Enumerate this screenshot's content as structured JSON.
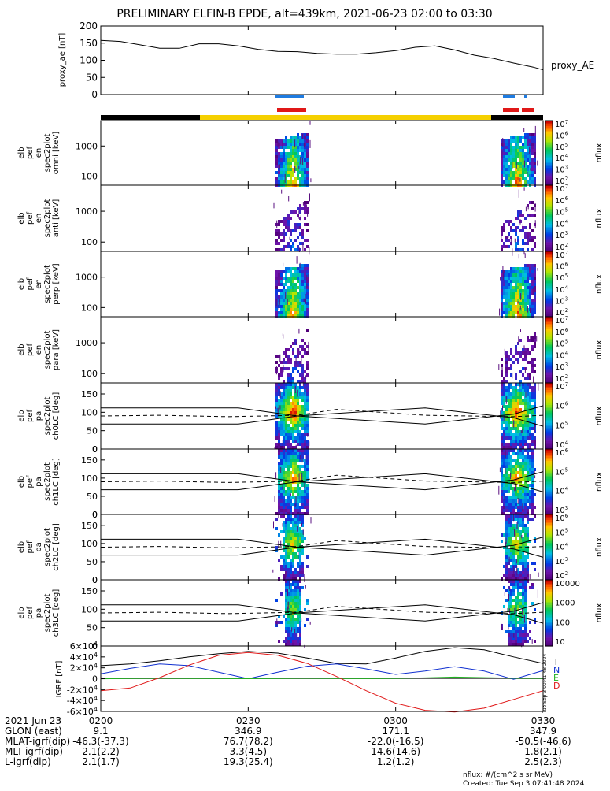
{
  "title": "PRELIMINARY ELFIN-B EPDE, alt=439km, 2021-06-23 02:00 to 03:30",
  "footer": {
    "units": "nflux: #/(cm^2 s sr MeV)",
    "created": "Created: Tue Sep  3 07:41:48 2024",
    "side_stamp": "Tue Sep  3 00:41:48 2024"
  },
  "colors": {
    "ae_line": "#000000",
    "sci_zone": "#1e7be0",
    "sci_zone_red": "#e01818",
    "orbit_black": "#000000",
    "orbit_yellow": "#f5d000",
    "igrf_T": "#000000",
    "igrf_N": "#1030d0",
    "igrf_E": "#20b020",
    "igrf_D": "#e01818"
  },
  "time_axis": {
    "tick_labels": [
      "0200",
      "0230",
      "0300",
      "0330"
    ],
    "start_minutes": 0,
    "end_minutes": 90
  },
  "ephemeris": {
    "date_label": "2021 Jun 23",
    "rows": [
      {
        "label": "GLON (east)",
        "values": [
          "9.1",
          "346.9",
          "171.1",
          "347.9"
        ]
      },
      {
        "label": "MLAT-igrf(dip)",
        "values": [
          "-46.3(-37.3)",
          "76.7(78.2)",
          "-22.0(-16.5)",
          "-50.5(-46.6)"
        ]
      },
      {
        "label": "MLT-igrf(dip)",
        "values": [
          "2.1(2.2)",
          "3.3(4.5)",
          "14.6(14.6)",
          "1.8(2.1)"
        ]
      },
      {
        "label": "L-igrf(dip)",
        "values": [
          "2.1(1.7)",
          "19.3(25.4)",
          "1.2(1.2)",
          "2.5(2.3)"
        ]
      }
    ]
  },
  "chart_data": [
    {
      "type": "line",
      "ylabel": "proxy_ae [nT]",
      "series_label": "proxy_AE",
      "ylim": [
        0,
        200
      ],
      "yticks": [
        "0",
        "50",
        "100",
        "150",
        "200"
      ],
      "x_minutes": [
        0,
        4,
        8,
        12,
        16,
        20,
        24,
        28,
        32,
        36,
        40,
        44,
        48,
        52,
        56,
        60,
        64,
        68,
        72,
        76,
        80,
        84,
        88,
        90
      ],
      "values": [
        158,
        155,
        145,
        135,
        135,
        148,
        148,
        142,
        132,
        126,
        125,
        120,
        118,
        118,
        122,
        128,
        138,
        142,
        130,
        115,
        105,
        92,
        80,
        72
      ]
    },
    {
      "type": "heatmap",
      "ylabel": "elb pef en spec2plot omni [keV]",
      "colorbar_label": "nflux",
      "yticks": [
        "100",
        "1000"
      ],
      "colorbar_ticks": [
        "10^2",
        "10^3",
        "10^4",
        "10^5",
        "10^6",
        "10^7"
      ]
    },
    {
      "type": "heatmap",
      "ylabel": "elb pef en spec2plot anti [keV]",
      "colorbar_label": "nflux",
      "yticks": [
        "100",
        "1000"
      ],
      "colorbar_ticks": [
        "10^2",
        "10^3",
        "10^4",
        "10^5",
        "10^6",
        "10^7"
      ]
    },
    {
      "type": "heatmap",
      "ylabel": "elb pef en spec2plot perp [keV]",
      "colorbar_label": "nflux",
      "yticks": [
        "100",
        "1000"
      ],
      "colorbar_ticks": [
        "10^2",
        "10^3",
        "10^4",
        "10^5",
        "10^6",
        "10^7"
      ]
    },
    {
      "type": "heatmap",
      "ylabel": "elb pef en spec2plot para [keV]",
      "colorbar_label": "nflux",
      "yticks": [
        "100",
        "1000"
      ],
      "colorbar_ticks": [
        "10^2",
        "10^3",
        "10^4",
        "10^5",
        "10^6",
        "10^7"
      ]
    },
    {
      "type": "heatmap",
      "ylabel": "elb pef pa spec2plot ch0LC [deg]",
      "colorbar_label": "nflux",
      "yticks": [
        "0",
        "50",
        "100",
        "150"
      ],
      "colorbar_ticks": [
        "10^4",
        "10^5",
        "10^6",
        "10^7"
      ]
    },
    {
      "type": "heatmap",
      "ylabel": "elb pef pa spec2plot ch1LC [deg]",
      "colorbar_label": "nflux",
      "yticks": [
        "0",
        "50",
        "100",
        "150"
      ],
      "colorbar_ticks": [
        "10^3",
        "10^4",
        "10^5",
        "10^6"
      ]
    },
    {
      "type": "heatmap",
      "ylabel": "elb pef pa spec2plot ch2LC [deg]",
      "colorbar_label": "nflux",
      "yticks": [
        "0",
        "50",
        "100",
        "150"
      ],
      "colorbar_ticks": [
        "10^2",
        "10^3",
        "10^4",
        "10^5",
        "10^6"
      ]
    },
    {
      "type": "heatmap",
      "ylabel": "elb pef pa spec2plot ch3LC [deg]",
      "colorbar_label": "nflux",
      "yticks": [
        "0",
        "50",
        "100",
        "150"
      ],
      "colorbar_ticks": [
        "10",
        "100",
        "1000",
        "10000"
      ]
    },
    {
      "type": "line",
      "ylabel": "IGRF [nT]",
      "ylim": [
        -60000,
        60000
      ],
      "yticks": [
        "-6×10^4",
        "-4×10^4",
        "-2×10^4",
        "0",
        "2×10^4",
        "4×10^4",
        "6×10^4"
      ],
      "x_minutes": [
        0,
        6,
        12,
        18,
        24,
        30,
        36,
        42,
        48,
        54,
        60,
        66,
        72,
        78,
        84,
        90
      ],
      "series": [
        {
          "name": "T",
          "values": [
            24000,
            27000,
            33000,
            40000,
            46000,
            50000,
            47000,
            38000,
            28000,
            27000,
            38000,
            50000,
            57000,
            53000,
            40000,
            28000
          ]
        },
        {
          "name": "N",
          "values": [
            9000,
            19000,
            27000,
            24000,
            12000,
            0,
            12000,
            23000,
            27000,
            18000,
            8000,
            14000,
            22000,
            14000,
            -1000,
            15000
          ]
        },
        {
          "name": "E",
          "values": [
            -200,
            300,
            700,
            500,
            200,
            0,
            400,
            700,
            500,
            100,
            600,
            1600,
            3000,
            2000,
            900,
            600
          ]
        },
        {
          "name": "D",
          "values": [
            -22000,
            -17000,
            2000,
            25000,
            43000,
            48000,
            43000,
            28000,
            4000,
            -22000,
            -45000,
            -58000,
            -61000,
            -54000,
            -38000,
            -22000
          ]
        }
      ]
    }
  ]
}
